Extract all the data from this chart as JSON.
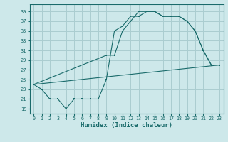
{
  "xlabel": "Humidex (Indice chaleur)",
  "background_color": "#cde8ea",
  "grid_color": "#aacdd0",
  "line_color": "#1a6b6b",
  "x_ticks": [
    0,
    1,
    2,
    3,
    4,
    5,
    6,
    7,
    8,
    9,
    10,
    11,
    12,
    13,
    14,
    15,
    16,
    17,
    18,
    19,
    20,
    21,
    22,
    23
  ],
  "y_ticks": [
    19,
    21,
    23,
    25,
    27,
    29,
    31,
    33,
    35,
    37,
    39
  ],
  "xlim": [
    -0.5,
    23.5
  ],
  "ylim": [
    18.0,
    40.5
  ],
  "line1_x": [
    0,
    1,
    2,
    3,
    4,
    5,
    6,
    7,
    8,
    9,
    10,
    11,
    12,
    13,
    14,
    15,
    16,
    17,
    18,
    19,
    20,
    21,
    22,
    23
  ],
  "line1_y": [
    24,
    23,
    21,
    21,
    19,
    21,
    21,
    21,
    21,
    25,
    35,
    36,
    38,
    38,
    39,
    39,
    38,
    38,
    38,
    37,
    35,
    31,
    28,
    28
  ],
  "line2_x": [
    0,
    9,
    10,
    11,
    12,
    13,
    14,
    15,
    16,
    17,
    18,
    19,
    20,
    21,
    22,
    23
  ],
  "line2_y": [
    24,
    30,
    30,
    35,
    37,
    39,
    39,
    39,
    38,
    38,
    38,
    37,
    35,
    31,
    28,
    28
  ],
  "line3_x": [
    0,
    23
  ],
  "line3_y": [
    24,
    28
  ]
}
